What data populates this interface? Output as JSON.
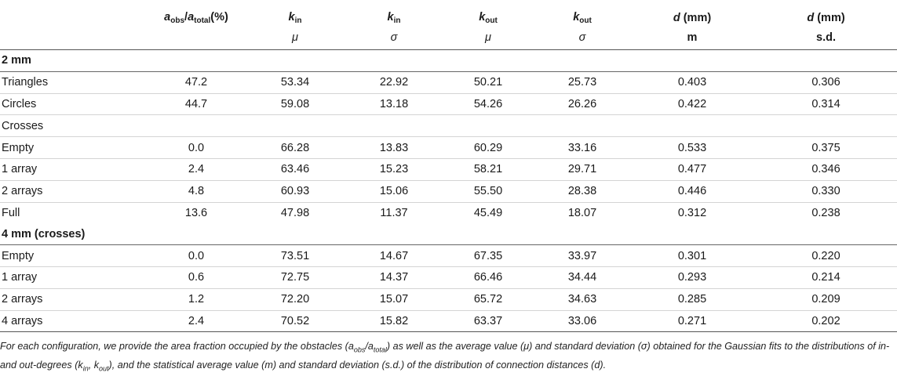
{
  "table": {
    "header": {
      "row1": [
        {
          "main": "a",
          "sub": "obs",
          "slash": "/",
          "main2": "a",
          "sub2": "total",
          "suffix": "(%)"
        },
        {
          "main": "k",
          "sub": "in"
        },
        {
          "main": "k",
          "sub": "in"
        },
        {
          "main": "k",
          "sub": "out"
        },
        {
          "main": "k",
          "sub": "out"
        },
        {
          "main": "d",
          "suffix": " (mm)"
        },
        {
          "main": "d",
          "suffix": " (mm)"
        }
      ],
      "row2": [
        "",
        "μ",
        "σ",
        "μ",
        "σ",
        "m",
        "s.d."
      ]
    },
    "sections": [
      {
        "title": "2 mm",
        "rows": [
          {
            "label": "Triangles",
            "values": [
              "47.2",
              "53.34",
              "22.92",
              "50.21",
              "25.73",
              "0.403",
              "0.306"
            ]
          },
          {
            "label": "Circles",
            "values": [
              "44.7",
              "59.08",
              "13.18",
              "54.26",
              "26.26",
              "0.422",
              "0.314"
            ]
          },
          {
            "label": "Crosses",
            "values": [
              "",
              "",
              "",
              "",
              "",
              "",
              ""
            ]
          },
          {
            "label": "Empty",
            "values": [
              "0.0",
              "66.28",
              "13.83",
              "60.29",
              "33.16",
              "0.533",
              "0.375"
            ]
          },
          {
            "label": "1 array",
            "values": [
              "2.4",
              "63.46",
              "15.23",
              "58.21",
              "29.71",
              "0.477",
              "0.346"
            ]
          },
          {
            "label": "2 arrays",
            "values": [
              "4.8",
              "60.93",
              "15.06",
              "55.50",
              "28.38",
              "0.446",
              "0.330"
            ]
          },
          {
            "label": "Full",
            "values": [
              "13.6",
              "47.98",
              "11.37",
              "45.49",
              "18.07",
              "0.312",
              "0.238"
            ]
          }
        ]
      },
      {
        "title": "4 mm (crosses)",
        "rows": [
          {
            "label": "Empty",
            "values": [
              "0.0",
              "73.51",
              "14.67",
              "67.35",
              "33.97",
              "0.301",
              "0.220"
            ]
          },
          {
            "label": "1 array",
            "values": [
              "0.6",
              "72.75",
              "14.37",
              "66.46",
              "34.44",
              "0.293",
              "0.214"
            ]
          },
          {
            "label": "2 arrays",
            "values": [
              "1.2",
              "72.20",
              "15.07",
              "65.72",
              "34.63",
              "0.285",
              "0.209"
            ]
          },
          {
            "label": "4 arrays",
            "values": [
              "2.4",
              "70.52",
              "15.82",
              "63.37",
              "33.06",
              "0.271",
              "0.202"
            ]
          }
        ]
      }
    ]
  },
  "caption": "For each configuration, we provide the area fraction occupied by the obstacles (aobs/atotal) as well as the average value (μ) and standard deviation (σ) obtained for the Gaussian fits to the distributions of in- and out-degrees (kin, kout), and the statistical average value (m) and standard deviation (s.d.) of the distribution of connection distances (d)."
}
